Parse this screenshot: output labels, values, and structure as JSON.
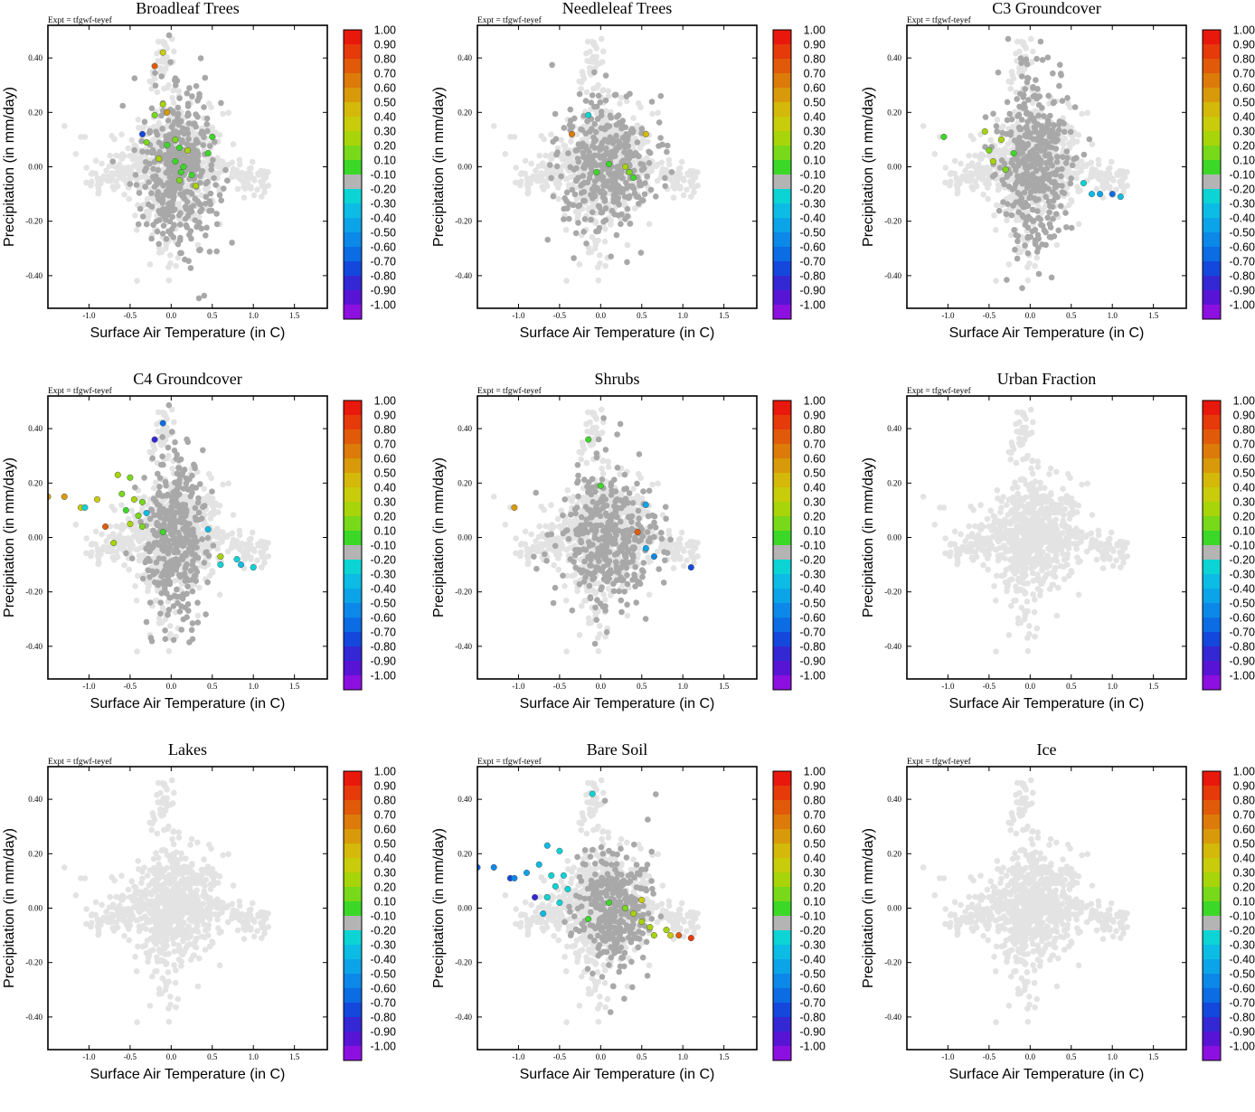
{
  "figure": {
    "expt_label": "Expt = tfgwf-teyef",
    "xlabel": "Surface Air Temperature (in C)",
    "ylabel": "Precipitation (in mm/day)"
  },
  "colors": {
    "background_points": "#e3e3e3",
    "dark_points": "#a8a8a8",
    "axis": "#000000"
  },
  "colorbar": {
    "labels": [
      "1.00",
      "0.90",
      "0.80",
      "0.70",
      "0.60",
      "0.50",
      "0.40",
      "0.30",
      "0.20",
      "0.10",
      "-0.10",
      "-0.20",
      "-0.30",
      "-0.40",
      "-0.50",
      "-0.60",
      "-0.70",
      "-0.80",
      "-0.90",
      "-1.00"
    ],
    "colors": [
      "#e8180c",
      "#e63a0a",
      "#e05a0a",
      "#dc7a0a",
      "#d89a0a",
      "#d4b80a",
      "#c8cc0a",
      "#a8d40a",
      "#78d81a",
      "#3cd828",
      "#b4b4b4",
      "#0cd4d4",
      "#0cbce4",
      "#0ca4e8",
      "#0c88e8",
      "#0c6ce4",
      "#1448dc",
      "#3428d4",
      "#5814d4",
      "#8c10e0"
    ]
  },
  "chart_data": [
    {
      "type": "scatter",
      "title": "Broadleaf Trees",
      "xlim": [
        -1.5,
        1.9
      ],
      "ylim": [
        -0.52,
        0.52
      ],
      "xticks": [
        "-1.0",
        "-0.5",
        "0.0",
        "0.5",
        "1.0",
        "1.5"
      ],
      "yticks": [
        "0.40",
        "0.20",
        "0.00",
        "-0.20",
        "-0.40"
      ],
      "dark_cloud": {
        "cx": 0.1,
        "cy": 0.0,
        "sx": 0.25,
        "sy": 0.13,
        "n": 420
      },
      "highlight_points": [
        {
          "x": -0.1,
          "y": 0.42,
          "c": 0.4
        },
        {
          "x": -0.2,
          "y": 0.37,
          "c": 0.8
        },
        {
          "x": -0.1,
          "y": 0.23,
          "c": 0.3
        },
        {
          "x": -0.2,
          "y": 0.19,
          "c": 0.2
        },
        {
          "x": -0.05,
          "y": 0.2,
          "c": 0.6
        },
        {
          "x": -0.35,
          "y": 0.12,
          "c": -0.7
        },
        {
          "x": -0.3,
          "y": 0.09,
          "c": 0.2
        },
        {
          "x": -0.05,
          "y": 0.08,
          "c": 0.1
        },
        {
          "x": 0.05,
          "y": 0.1,
          "c": 0.2
        },
        {
          "x": 0.1,
          "y": 0.07,
          "c": 0.1
        },
        {
          "x": 0.2,
          "y": 0.06,
          "c": 0.3
        },
        {
          "x": -0.15,
          "y": 0.03,
          "c": 0.3
        },
        {
          "x": 0.05,
          "y": 0.02,
          "c": 0.1
        },
        {
          "x": 0.15,
          "y": 0.0,
          "c": 0.1
        },
        {
          "x": 0.25,
          "y": -0.03,
          "c": 0.1
        },
        {
          "x": 0.1,
          "y": -0.05,
          "c": 0.2
        },
        {
          "x": 0.3,
          "y": -0.07,
          "c": 0.3
        },
        {
          "x": 0.5,
          "y": 0.11,
          "c": 0.1
        },
        {
          "x": 0.45,
          "y": 0.05,
          "c": 0.1
        },
        {
          "x": 0.12,
          "y": -0.02,
          "c": 0.1
        }
      ]
    },
    {
      "type": "scatter",
      "title": "Needleleaf Trees",
      "xlim": [
        -1.5,
        1.9
      ],
      "ylim": [
        -0.52,
        0.52
      ],
      "xticks": [
        "-1.0",
        "-0.5",
        "0.0",
        "0.5",
        "1.0",
        "1.5"
      ],
      "yticks": [
        "0.40",
        "0.20",
        "0.00",
        "-0.20",
        "-0.40"
      ],
      "dark_cloud": {
        "cx": 0.1,
        "cy": 0.0,
        "sx": 0.28,
        "sy": 0.11,
        "n": 380
      },
      "highlight_points": [
        {
          "x": -0.15,
          "y": 0.19,
          "c": -0.2
        },
        {
          "x": -0.35,
          "y": 0.12,
          "c": 0.7
        },
        {
          "x": 0.55,
          "y": 0.12,
          "c": 0.5
        },
        {
          "x": -0.05,
          "y": -0.02,
          "c": 0.1
        },
        {
          "x": 0.1,
          "y": 0.01,
          "c": 0.1
        },
        {
          "x": 0.3,
          "y": 0.0,
          "c": 0.3
        },
        {
          "x": 0.35,
          "y": -0.02,
          "c": 0.2
        },
        {
          "x": 0.4,
          "y": -0.04,
          "c": 0.1
        }
      ]
    },
    {
      "type": "scatter",
      "title": "C3 Groundcover",
      "xlim": [
        -1.5,
        1.9
      ],
      "ylim": [
        -0.52,
        0.52
      ],
      "xticks": [
        "-1.0",
        "-0.5",
        "0.0",
        "0.5",
        "1.0",
        "1.5"
      ],
      "yticks": [
        "0.40",
        "0.20",
        "0.00",
        "-0.20",
        "-0.40"
      ],
      "dark_cloud": {
        "cx": 0.05,
        "cy": 0.02,
        "sx": 0.22,
        "sy": 0.14,
        "n": 420
      },
      "highlight_points": [
        {
          "x": -1.05,
          "y": 0.11,
          "c": 0.1
        },
        {
          "x": -0.55,
          "y": 0.13,
          "c": 0.3
        },
        {
          "x": -0.35,
          "y": 0.1,
          "c": 0.3
        },
        {
          "x": -0.5,
          "y": 0.06,
          "c": 0.2
        },
        {
          "x": -0.45,
          "y": 0.02,
          "c": 0.3
        },
        {
          "x": -0.3,
          "y": -0.01,
          "c": 0.2
        },
        {
          "x": -0.2,
          "y": 0.05,
          "c": 0.1
        },
        {
          "x": 0.65,
          "y": -0.06,
          "c": -0.2
        },
        {
          "x": 0.75,
          "y": -0.1,
          "c": -0.3
        },
        {
          "x": 0.85,
          "y": -0.1,
          "c": -0.4
        },
        {
          "x": 1.0,
          "y": -0.1,
          "c": -0.6
        },
        {
          "x": 1.1,
          "y": -0.11,
          "c": -0.3
        }
      ]
    },
    {
      "type": "scatter",
      "title": "C4 Groundcover",
      "xlim": [
        -1.5,
        1.9
      ],
      "ylim": [
        -0.52,
        0.52
      ],
      "xticks": [
        "-1.0",
        "-0.5",
        "0.0",
        "0.5",
        "1.0",
        "1.5"
      ],
      "yticks": [
        "0.40",
        "0.20",
        "0.00",
        "-0.20",
        "-0.40"
      ],
      "dark_cloud": {
        "cx": 0.05,
        "cy": 0.0,
        "sx": 0.18,
        "sy": 0.14,
        "n": 400
      },
      "highlight_points": [
        {
          "x": -0.1,
          "y": 0.42,
          "c": -0.6
        },
        {
          "x": -0.2,
          "y": 0.36,
          "c": -0.8
        },
        {
          "x": -1.5,
          "y": 0.15,
          "c": 0.6
        },
        {
          "x": -1.3,
          "y": 0.15,
          "c": 0.6
        },
        {
          "x": -1.1,
          "y": 0.11,
          "c": 0.4
        },
        {
          "x": -1.05,
          "y": 0.11,
          "c": -0.2
        },
        {
          "x": -0.9,
          "y": 0.14,
          "c": 0.4
        },
        {
          "x": -0.65,
          "y": 0.23,
          "c": 0.3
        },
        {
          "x": -0.5,
          "y": 0.22,
          "c": 0.2
        },
        {
          "x": -0.6,
          "y": 0.16,
          "c": 0.2
        },
        {
          "x": -0.45,
          "y": 0.14,
          "c": 0.3
        },
        {
          "x": -0.35,
          "y": 0.13,
          "c": 0.2
        },
        {
          "x": -0.55,
          "y": 0.1,
          "c": 0.1
        },
        {
          "x": -0.4,
          "y": 0.08,
          "c": 0.2
        },
        {
          "x": -0.3,
          "y": 0.09,
          "c": -0.3
        },
        {
          "x": -0.5,
          "y": 0.05,
          "c": 0.3
        },
        {
          "x": -0.35,
          "y": 0.04,
          "c": 0.2
        },
        {
          "x": -0.8,
          "y": 0.04,
          "c": 0.8
        },
        {
          "x": -0.7,
          "y": -0.02,
          "c": 0.3
        },
        {
          "x": -0.1,
          "y": 0.02,
          "c": 0.1
        },
        {
          "x": 0.45,
          "y": 0.03,
          "c": -0.3
        },
        {
          "x": 0.6,
          "y": -0.07,
          "c": 0.3
        },
        {
          "x": 0.6,
          "y": -0.1,
          "c": -0.2
        },
        {
          "x": 0.8,
          "y": -0.08,
          "c": -0.2
        },
        {
          "x": 0.85,
          "y": -0.1,
          "c": -0.3
        },
        {
          "x": 1.0,
          "y": -0.11,
          "c": -0.2
        }
      ]
    },
    {
      "type": "scatter",
      "title": "Shrubs",
      "xlim": [
        -1.5,
        1.9
      ],
      "ylim": [
        -0.52,
        0.52
      ],
      "xticks": [
        "-1.0",
        "-0.5",
        "0.0",
        "0.5",
        "1.0",
        "1.5"
      ],
      "yticks": [
        "0.40",
        "0.20",
        "0.00",
        "-0.20",
        "-0.40"
      ],
      "dark_cloud": {
        "cx": 0.1,
        "cy": 0.0,
        "sx": 0.3,
        "sy": 0.12,
        "n": 380
      },
      "highlight_points": [
        {
          "x": -0.15,
          "y": 0.36,
          "c": 0.1
        },
        {
          "x": 0.0,
          "y": 0.19,
          "c": 0.1
        },
        {
          "x": -1.05,
          "y": 0.11,
          "c": 0.6
        },
        {
          "x": 0.55,
          "y": 0.12,
          "c": -0.4
        },
        {
          "x": 0.45,
          "y": 0.02,
          "c": 0.8
        },
        {
          "x": 0.55,
          "y": -0.04,
          "c": -0.4
        },
        {
          "x": 0.65,
          "y": -0.07,
          "c": -0.5
        },
        {
          "x": 1.1,
          "y": -0.11,
          "c": -0.7
        }
      ]
    },
    {
      "type": "scatter",
      "title": "Urban Fraction",
      "xlim": [
        -1.5,
        1.9
      ],
      "ylim": [
        -0.52,
        0.52
      ],
      "xticks": [
        "-1.0",
        "-0.5",
        "0.0",
        "0.5",
        "1.0",
        "1.5"
      ],
      "yticks": [
        "0.40",
        "0.20",
        "0.00",
        "-0.20",
        "-0.40"
      ],
      "dark_cloud": {
        "cx": 0.0,
        "cy": 0.0,
        "sx": 0.1,
        "sy": 0.1,
        "n": 0
      },
      "highlight_points": []
    },
    {
      "type": "scatter",
      "title": "Lakes",
      "xlim": [
        -1.5,
        1.9
      ],
      "ylim": [
        -0.52,
        0.52
      ],
      "xticks": [
        "-1.0",
        "-0.5",
        "0.0",
        "0.5",
        "1.0",
        "1.5"
      ],
      "yticks": [
        "0.40",
        "0.20",
        "0.00",
        "-0.20",
        "-0.40"
      ],
      "dark_cloud": {
        "cx": 0.0,
        "cy": 0.0,
        "sx": 0.1,
        "sy": 0.1,
        "n": 0
      },
      "highlight_points": []
    },
    {
      "type": "scatter",
      "title": "Bare Soil",
      "xlim": [
        -1.5,
        1.9
      ],
      "ylim": [
        -0.52,
        0.52
      ],
      "xticks": [
        "-1.0",
        "-0.5",
        "0.0",
        "0.5",
        "1.0",
        "1.5"
      ],
      "yticks": [
        "0.40",
        "0.20",
        "0.00",
        "-0.20",
        "-0.40"
      ],
      "dark_cloud": {
        "cx": 0.15,
        "cy": 0.0,
        "sx": 0.22,
        "sy": 0.1,
        "n": 330
      },
      "highlight_points": [
        {
          "x": -0.1,
          "y": 0.42,
          "c": -0.2
        },
        {
          "x": -1.5,
          "y": 0.15,
          "c": -0.6
        },
        {
          "x": -1.3,
          "y": 0.15,
          "c": -0.5
        },
        {
          "x": -1.1,
          "y": 0.11,
          "c": -0.7
        },
        {
          "x": -1.05,
          "y": 0.11,
          "c": -0.5
        },
        {
          "x": -0.9,
          "y": 0.13,
          "c": -0.4
        },
        {
          "x": -0.65,
          "y": 0.23,
          "c": -0.3
        },
        {
          "x": -0.5,
          "y": 0.21,
          "c": -0.2
        },
        {
          "x": -0.75,
          "y": 0.16,
          "c": -0.3
        },
        {
          "x": -0.6,
          "y": 0.12,
          "c": -0.2
        },
        {
          "x": -0.45,
          "y": 0.12,
          "c": -0.2
        },
        {
          "x": -0.55,
          "y": 0.08,
          "c": -0.2
        },
        {
          "x": -0.4,
          "y": 0.07,
          "c": -0.2
        },
        {
          "x": -0.65,
          "y": 0.04,
          "c": -0.2
        },
        {
          "x": -0.5,
          "y": 0.02,
          "c": -0.2
        },
        {
          "x": -0.8,
          "y": 0.04,
          "c": -0.8
        },
        {
          "x": -0.7,
          "y": -0.02,
          "c": -0.3
        },
        {
          "x": -0.15,
          "y": -0.04,
          "c": 0.1
        },
        {
          "x": 0.1,
          "y": 0.02,
          "c": 0.1
        },
        {
          "x": 0.3,
          "y": 0.0,
          "c": 0.2
        },
        {
          "x": 0.4,
          "y": -0.02,
          "c": 0.3
        },
        {
          "x": 0.5,
          "y": 0.03,
          "c": 0.4
        },
        {
          "x": 0.5,
          "y": -0.05,
          "c": 0.3
        },
        {
          "x": 0.6,
          "y": -0.07,
          "c": 0.3
        },
        {
          "x": 0.65,
          "y": -0.1,
          "c": 0.3
        },
        {
          "x": 0.8,
          "y": -0.08,
          "c": 0.3
        },
        {
          "x": 0.85,
          "y": -0.1,
          "c": 0.4
        },
        {
          "x": 0.95,
          "y": -0.1,
          "c": 0.8
        },
        {
          "x": 1.1,
          "y": -0.11,
          "c": 0.9
        }
      ]
    },
    {
      "type": "scatter",
      "title": "Ice",
      "xlim": [
        -1.5,
        1.9
      ],
      "ylim": [
        -0.52,
        0.52
      ],
      "xticks": [
        "-1.0",
        "-0.5",
        "0.0",
        "0.5",
        "1.0",
        "1.5"
      ],
      "yticks": [
        "0.40",
        "0.20",
        "0.00",
        "-0.20",
        "-0.40"
      ],
      "dark_cloud": {
        "cx": 0.0,
        "cy": 0.0,
        "sx": 0.1,
        "sy": 0.1,
        "n": 0
      },
      "highlight_points": []
    }
  ]
}
